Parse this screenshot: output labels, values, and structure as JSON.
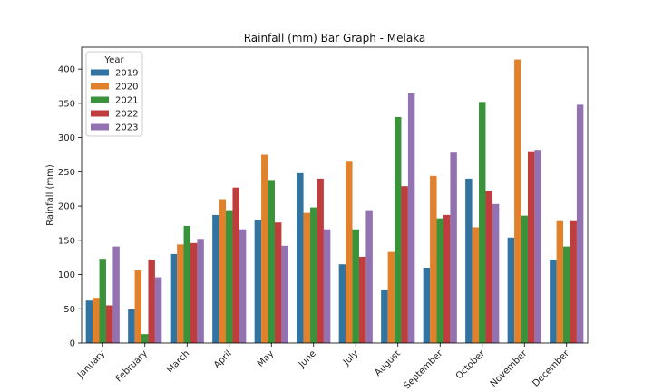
{
  "chart_data": {
    "type": "bar",
    "title": "Rainfall (mm) Bar Graph - Melaka",
    "xlabel": "",
    "ylabel": "Rainfall (mm)",
    "ylim": [
      0,
      432
    ],
    "yticks": [
      0,
      50,
      100,
      150,
      200,
      250,
      300,
      350,
      400
    ],
    "grid": false,
    "legend_title": "Year",
    "legend_position": "top-left",
    "categories": [
      "January",
      "February",
      "March",
      "April",
      "May",
      "June",
      "July",
      "August",
      "September",
      "October",
      "November",
      "December"
    ],
    "series": [
      {
        "name": "2019",
        "color": "#3274a1",
        "values": [
          62,
          49,
          130,
          187,
          180,
          248,
          115,
          77,
          110,
          240,
          154,
          122
        ]
      },
      {
        "name": "2020",
        "color": "#e1812c",
        "values": [
          66,
          106,
          144,
          210,
          275,
          190,
          266,
          133,
          244,
          169,
          414,
          178
        ]
      },
      {
        "name": "2021",
        "color": "#3a923a",
        "values": [
          123,
          13,
          171,
          194,
          238,
          198,
          166,
          330,
          182,
          352,
          186,
          141
        ]
      },
      {
        "name": "2022",
        "color": "#c03d3e",
        "values": [
          55,
          122,
          146,
          227,
          176,
          240,
          126,
          229,
          187,
          222,
          280,
          178
        ]
      },
      {
        "name": "2023",
        "color": "#9372b2",
        "values": [
          141,
          96,
          152,
          166,
          142,
          166,
          194,
          365,
          278,
          203,
          282,
          348
        ]
      }
    ]
  }
}
